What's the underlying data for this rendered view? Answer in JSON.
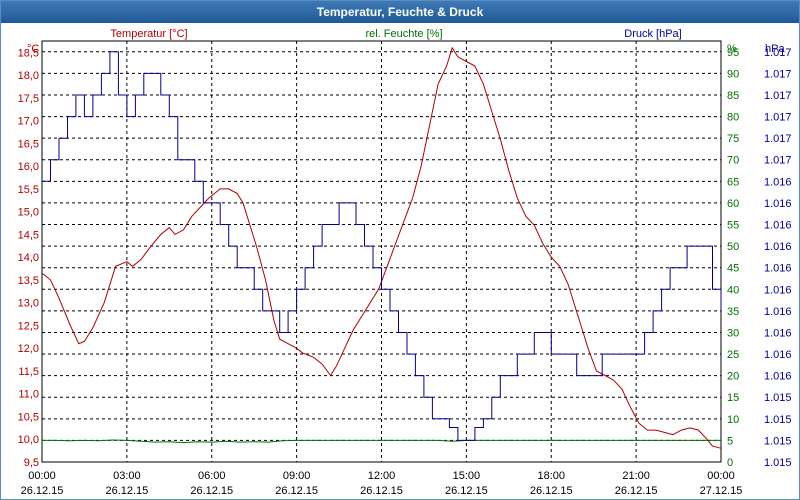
{
  "colors": {
    "temperature": "#b00000",
    "humidity": "#007000",
    "pressure": "#000090",
    "frame": "#5b8fc2",
    "title_bg": "#2a65a5"
  },
  "chart_data": {
    "type": "line",
    "title": "Temperatur, Feuchte & Druck",
    "x_axis": {
      "range_hours": [
        0,
        24
      ],
      "tick_hours": [
        0,
        3,
        6,
        9,
        12,
        15,
        18,
        21,
        24
      ],
      "tick_times": [
        "00:00",
        "03:00",
        "06:00",
        "09:00",
        "12:00",
        "15:00",
        "18:00",
        "21:00",
        "00:00"
      ],
      "tick_dates": [
        "26.12.15",
        "26.12.15",
        "26.12.15",
        "26.12.15",
        "26.12.15",
        "26.12.15",
        "26.12.15",
        "26.12.15",
        "27.12.15"
      ],
      "grid": true
    },
    "left_axis": {
      "unit": "°C",
      "label": "Temperatur [°C]",
      "range": [
        9.5,
        18.75
      ],
      "ticks": [
        "9,5",
        "10,0",
        "10,5",
        "11,0",
        "11,5",
        "12,0",
        "12,5",
        "13,0",
        "13,5",
        "14,0",
        "14,5",
        "15,0",
        "15,5",
        "16,0",
        "16,5",
        "17,0",
        "17,5",
        "18,0",
        "18,5"
      ]
    },
    "right_axis_1": {
      "unit": "%",
      "label": "rel. Feuchte [%]",
      "range": [
        0,
        97.5
      ],
      "ticks": [
        "0",
        "5",
        "10",
        "15",
        "20",
        "25",
        "30",
        "35",
        "40",
        "45",
        "50",
        "55",
        "60",
        "65",
        "70",
        "75",
        "80",
        "85",
        "90",
        "95"
      ]
    },
    "right_axis_2": {
      "unit": "hPa",
      "label": "Druck [hPa]",
      "ticks": [
        "1.015",
        "1.015",
        "1.015",
        "1.015",
        "1.016",
        "1.016",
        "1.016",
        "1.016",
        "1.016",
        "1.016",
        "1.016",
        "1.016",
        "1.016",
        "1.016",
        "1.017",
        "1.017",
        "1.017",
        "1.017",
        "1.017",
        "1.017"
      ]
    },
    "series": [
      {
        "name": "Temperatur [°C]",
        "axis": "left",
        "points": [
          [
            0,
            13.65
          ],
          [
            0.3,
            13.5
          ],
          [
            0.6,
            13.1
          ],
          [
            1.0,
            12.5
          ],
          [
            1.3,
            12.1
          ],
          [
            1.5,
            12.15
          ],
          [
            1.8,
            12.45
          ],
          [
            2.2,
            13.0
          ],
          [
            2.6,
            13.8
          ],
          [
            3.0,
            13.9
          ],
          [
            3.2,
            13.8
          ],
          [
            3.5,
            13.95
          ],
          [
            3.8,
            14.2
          ],
          [
            4.2,
            14.5
          ],
          [
            4.5,
            14.65
          ],
          [
            4.7,
            14.5
          ],
          [
            5.0,
            14.6
          ],
          [
            5.3,
            14.9
          ],
          [
            5.6,
            15.1
          ],
          [
            5.9,
            15.3
          ],
          [
            6.3,
            15.5
          ],
          [
            6.6,
            15.5
          ],
          [
            6.9,
            15.4
          ],
          [
            7.1,
            15.2
          ],
          [
            7.4,
            14.6
          ],
          [
            7.6,
            14.2
          ],
          [
            7.9,
            13.5
          ],
          [
            8.2,
            12.6
          ],
          [
            8.4,
            12.2
          ],
          [
            8.7,
            12.1
          ],
          [
            9.0,
            12.0
          ],
          [
            9.2,
            11.9
          ],
          [
            9.6,
            11.8
          ],
          [
            9.9,
            11.65
          ],
          [
            10.2,
            11.4
          ],
          [
            10.4,
            11.6
          ],
          [
            10.7,
            12.0
          ],
          [
            11.0,
            12.4
          ],
          [
            11.3,
            12.7
          ],
          [
            11.6,
            13.0
          ],
          [
            11.9,
            13.3
          ],
          [
            12.2,
            13.8
          ],
          [
            12.5,
            14.3
          ],
          [
            12.8,
            14.8
          ],
          [
            13.1,
            15.3
          ],
          [
            13.4,
            16.0
          ],
          [
            13.7,
            16.9
          ],
          [
            14.0,
            17.8
          ],
          [
            14.3,
            18.2
          ],
          [
            14.5,
            18.6
          ],
          [
            14.7,
            18.4
          ],
          [
            15.0,
            18.3
          ],
          [
            15.3,
            18.2
          ],
          [
            15.6,
            17.8
          ],
          [
            15.9,
            17.2
          ],
          [
            16.2,
            16.6
          ],
          [
            16.5,
            15.9
          ],
          [
            16.8,
            15.3
          ],
          [
            17.1,
            14.9
          ],
          [
            17.4,
            14.7
          ],
          [
            17.7,
            14.3
          ],
          [
            18.0,
            14.0
          ],
          [
            18.3,
            13.8
          ],
          [
            18.6,
            13.4
          ],
          [
            18.9,
            12.8
          ],
          [
            19.1,
            12.4
          ],
          [
            19.3,
            12.0
          ],
          [
            19.6,
            11.5
          ],
          [
            19.9,
            11.4
          ],
          [
            20.2,
            11.3
          ],
          [
            20.5,
            11.1
          ],
          [
            20.8,
            10.7
          ],
          [
            21.1,
            10.35
          ],
          [
            21.4,
            10.2
          ],
          [
            21.7,
            10.2
          ],
          [
            22.0,
            10.15
          ],
          [
            22.3,
            10.1
          ],
          [
            22.6,
            10.2
          ],
          [
            22.9,
            10.25
          ],
          [
            23.2,
            10.2
          ],
          [
            23.5,
            10.0
          ],
          [
            23.7,
            9.85
          ],
          [
            24.0,
            9.8
          ]
        ]
      },
      {
        "name": "rel. Feuchte [%]",
        "axis": "right_1",
        "points": [
          [
            0,
            5.0
          ],
          [
            0.5,
            5.0
          ],
          [
            1.0,
            4.9
          ],
          [
            1.5,
            5.0
          ],
          [
            2.0,
            4.9
          ],
          [
            2.5,
            5.1
          ],
          [
            3.0,
            5.0
          ],
          [
            3.5,
            4.8
          ],
          [
            4.0,
            4.6
          ],
          [
            4.5,
            4.7
          ],
          [
            5.0,
            4.5
          ],
          [
            5.5,
            4.7
          ],
          [
            6.0,
            4.6
          ],
          [
            6.5,
            4.8
          ],
          [
            7.0,
            4.6
          ],
          [
            7.5,
            4.7
          ],
          [
            8.0,
            4.6
          ],
          [
            8.5,
            4.9
          ],
          [
            9.0,
            5.0
          ],
          [
            10.0,
            5.0
          ],
          [
            11.0,
            5.0
          ],
          [
            12.0,
            5.0
          ],
          [
            13.0,
            5.0
          ],
          [
            14.0,
            5.0
          ],
          [
            14.5,
            4.8
          ],
          [
            15.0,
            5.0
          ],
          [
            16.0,
            5.0
          ],
          [
            17.0,
            5.0
          ],
          [
            18.0,
            5.0
          ],
          [
            19.0,
            5.0
          ],
          [
            20.0,
            5.0
          ],
          [
            21.0,
            5.0
          ],
          [
            22.0,
            5.0
          ],
          [
            23.0,
            5.0
          ],
          [
            24.0,
            5.0
          ]
        ]
      },
      {
        "name": "Druck [hPa]",
        "axis": "right_2",
        "points": [
          [
            0.0,
            65
          ],
          [
            0.3,
            70
          ],
          [
            0.6,
            75
          ],
          [
            0.9,
            80
          ],
          [
            1.2,
            85
          ],
          [
            1.5,
            80
          ],
          [
            1.8,
            85
          ],
          [
            2.1,
            90
          ],
          [
            2.4,
            95
          ],
          [
            2.7,
            85
          ],
          [
            3.0,
            80
          ],
          [
            3.3,
            85
          ],
          [
            3.6,
            90
          ],
          [
            3.9,
            90
          ],
          [
            4.2,
            85
          ],
          [
            4.5,
            80
          ],
          [
            4.8,
            70
          ],
          [
            5.1,
            70
          ],
          [
            5.4,
            65
          ],
          [
            5.7,
            60
          ],
          [
            6.0,
            60
          ],
          [
            6.3,
            55
          ],
          [
            6.6,
            50
          ],
          [
            6.9,
            45
          ],
          [
            7.2,
            45
          ],
          [
            7.5,
            40
          ],
          [
            7.8,
            35
          ],
          [
            8.1,
            35
          ],
          [
            8.4,
            30
          ],
          [
            8.7,
            35
          ],
          [
            9.0,
            40
          ],
          [
            9.3,
            45
          ],
          [
            9.6,
            50
          ],
          [
            9.9,
            55
          ],
          [
            10.2,
            55
          ],
          [
            10.5,
            60
          ],
          [
            10.8,
            60
          ],
          [
            11.1,
            55
          ],
          [
            11.4,
            50
          ],
          [
            11.7,
            45
          ],
          [
            12.0,
            40
          ],
          [
            12.3,
            35
          ],
          [
            12.6,
            30
          ],
          [
            12.9,
            25
          ],
          [
            13.2,
            20
          ],
          [
            13.5,
            15
          ],
          [
            13.8,
            10
          ],
          [
            14.1,
            10
          ],
          [
            14.4,
            8
          ],
          [
            14.7,
            5
          ],
          [
            15.0,
            5
          ],
          [
            15.3,
            8
          ],
          [
            15.6,
            10
          ],
          [
            15.9,
            15
          ],
          [
            16.2,
            20
          ],
          [
            16.5,
            20
          ],
          [
            16.8,
            25
          ],
          [
            17.1,
            25
          ],
          [
            17.4,
            30
          ],
          [
            17.7,
            30
          ],
          [
            18.0,
            25
          ],
          [
            18.3,
            25
          ],
          [
            18.6,
            25
          ],
          [
            18.9,
            20
          ],
          [
            19.2,
            20
          ],
          [
            19.5,
            20
          ],
          [
            19.8,
            25
          ],
          [
            20.1,
            25
          ],
          [
            20.4,
            25
          ],
          [
            20.7,
            25
          ],
          [
            21.0,
            25
          ],
          [
            21.3,
            30
          ],
          [
            21.6,
            35
          ],
          [
            21.9,
            40
          ],
          [
            22.2,
            45
          ],
          [
            22.5,
            45
          ],
          [
            22.8,
            50
          ],
          [
            23.1,
            50
          ],
          [
            23.4,
            50
          ],
          [
            23.7,
            40
          ],
          [
            24.0,
            35
          ]
        ]
      }
    ]
  }
}
